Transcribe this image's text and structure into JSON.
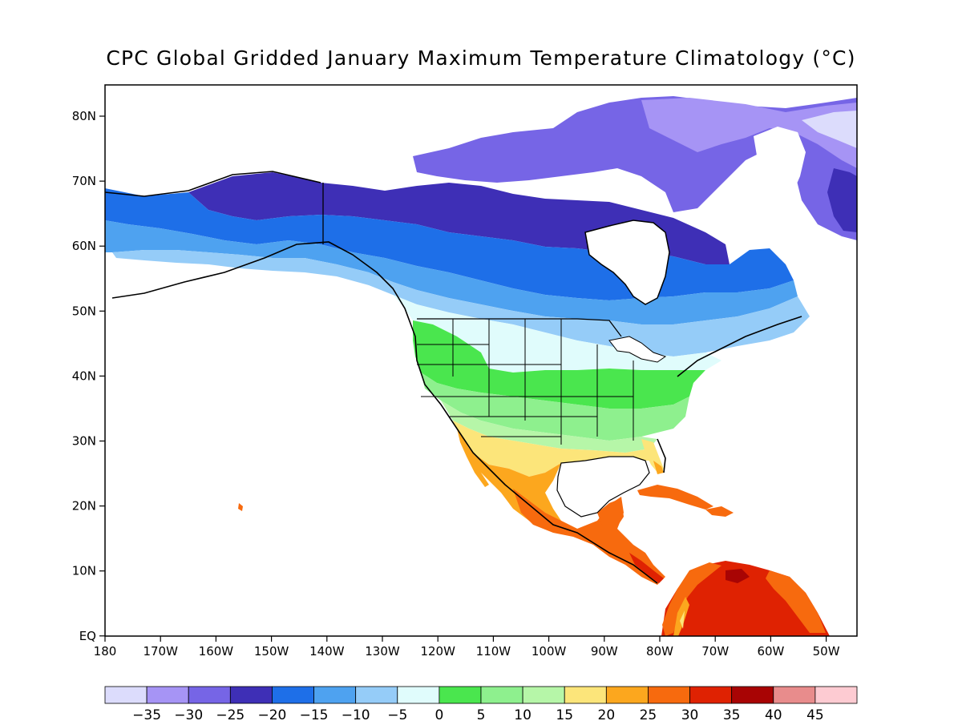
{
  "title": "CPC Global Gridded January Maximum Temperature Climatology (°C)",
  "lat_labels": [
    "80N",
    "70N",
    "60N",
    "50N",
    "40N",
    "30N",
    "20N",
    "10N",
    "EQ"
  ],
  "lon_labels": [
    "180",
    "170W",
    "160W",
    "150W",
    "140W",
    "130W",
    "120W",
    "110W",
    "100W",
    "90W",
    "80W",
    "70W",
    "60W",
    "50W"
  ],
  "colorbar": {
    "labels": [
      "−35",
      "−30",
      "−25",
      "−20",
      "−15",
      "−10",
      "−5",
      "0",
      "5",
      "10",
      "15",
      "20",
      "25",
      "30",
      "35",
      "40",
      "45"
    ],
    "colors": [
      "#dcdcfc",
      "#a694f5",
      "#7665e6",
      "#3e2fb6",
      "#1e6fe8",
      "#4ea2f0",
      "#95ccf8",
      "#e0fcfc",
      "#4ae64e",
      "#8ef08e",
      "#b6f6a8",
      "#fce57a",
      "#fca71e",
      "#f76a0e",
      "#df2202",
      "#a80404",
      "#e88c8c",
      "#fdcbd2"
    ]
  },
  "colors": {
    "ocean": "#ffffff",
    "coast": "#000000"
  }
}
